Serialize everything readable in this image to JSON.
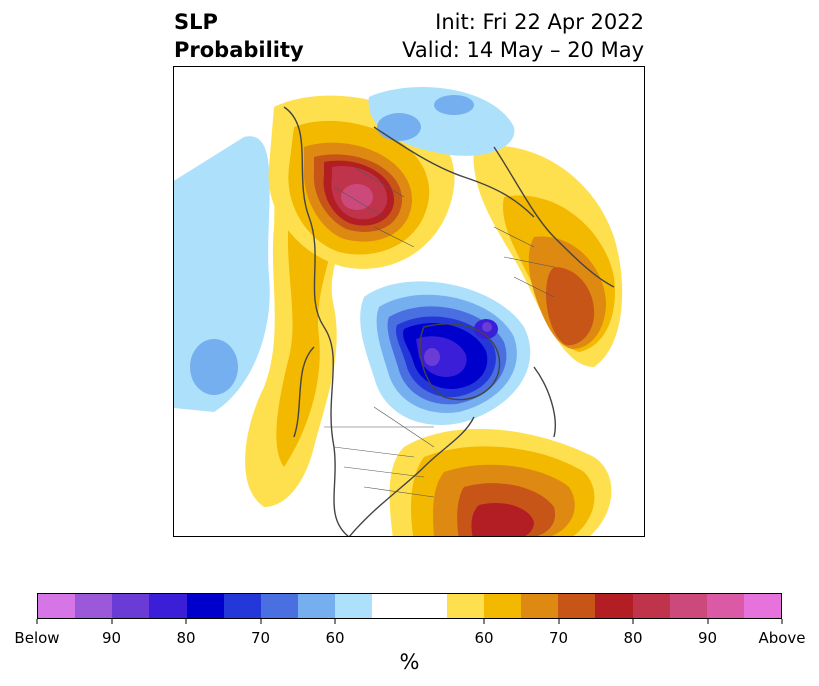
{
  "title": {
    "left_line1": "SLP",
    "left_line2": "Probability",
    "right_line1": "Init: Fri 22 Apr 2022",
    "right_line2": "Valid: 14 May – 20 May"
  },
  "colorbar": {
    "colors": [
      "#d675e6",
      "#9b59d9",
      "#6b3bd6",
      "#3a1ed8",
      "#0000cc",
      "#2438d9",
      "#4a6fe0",
      "#75aff0",
      "#ade0fb",
      "#ffffff",
      "#ffffff",
      "#fee04f",
      "#f3b800",
      "#de8a12",
      "#c75518",
      "#b21e23",
      "#c0344b",
      "#cc4a7b",
      "#db5aa6",
      "#e673dc"
    ],
    "tick_labels": [
      "Below",
      "90",
      "80",
      "70",
      "60",
      "60",
      "70",
      "80",
      "90",
      "Above"
    ],
    "label": "%"
  },
  "map": {
    "projection": "north-polar-stereographic",
    "features": [
      {
        "name": "low-probability-center-greenland",
        "category": "below",
        "level": "90"
      },
      {
        "name": "above-probability-center-ural",
        "category": "above",
        "level": "90"
      },
      {
        "name": "above-probability-center-north-atlantic",
        "category": "above",
        "level": "80"
      },
      {
        "name": "above-probability-center-eastern-canada",
        "category": "above",
        "level": "70"
      },
      {
        "name": "below-probability-north-pacific",
        "category": "below",
        "level": "70"
      }
    ]
  }
}
